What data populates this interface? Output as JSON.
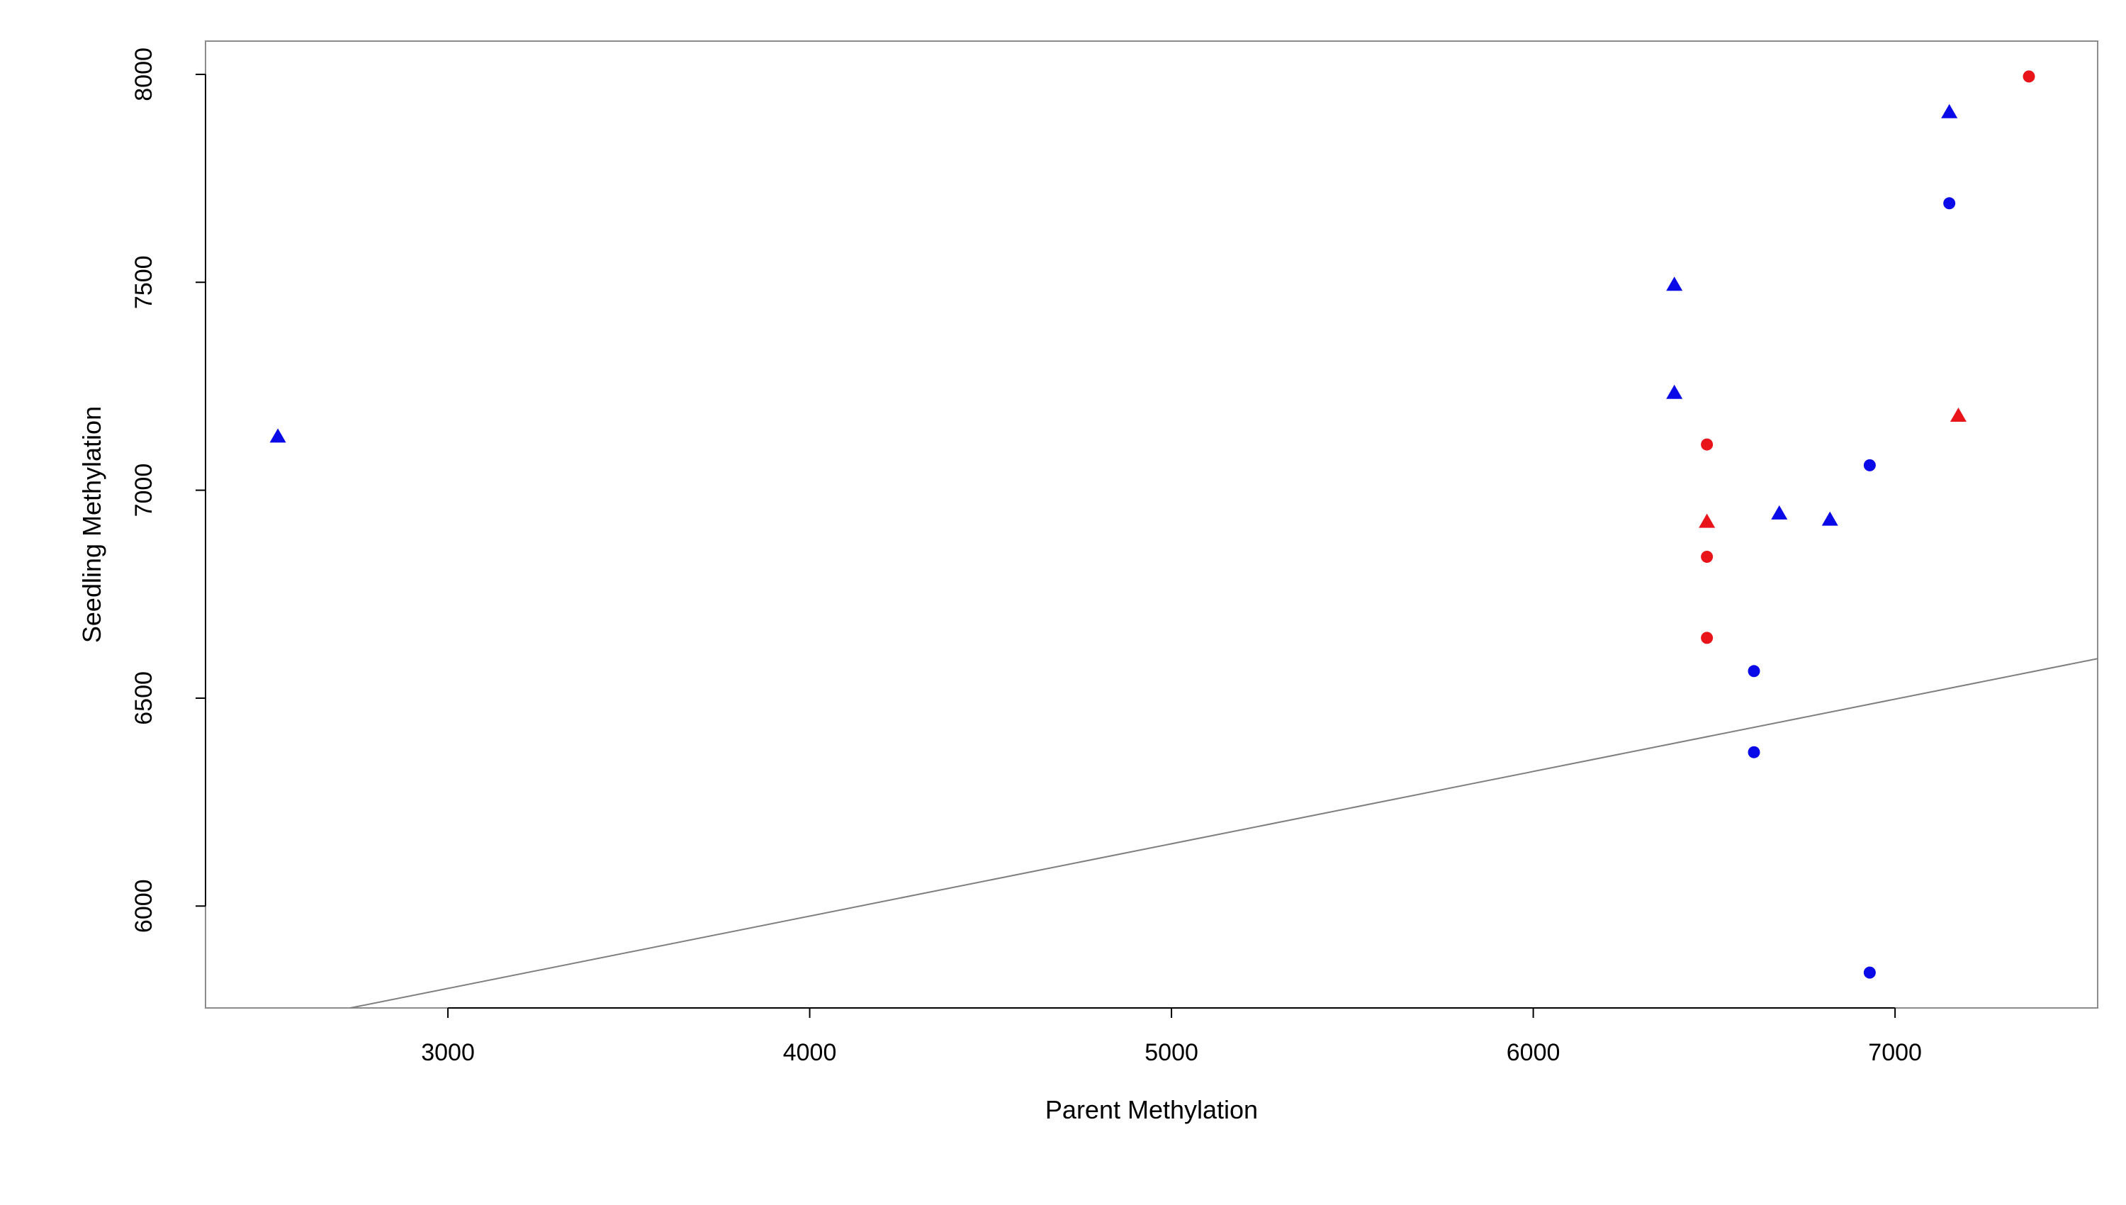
{
  "chart_data": {
    "type": "scatter",
    "title": "",
    "xlabel": "Parent Methylation",
    "ylabel": "Seedling Methylation",
    "xlim": [
      2330,
      7560
    ],
    "ylim": [
      5755,
      8080
    ],
    "x_ticks": [
      3000,
      4000,
      5000,
      6000,
      7000
    ],
    "y_ticks": [
      6000,
      6500,
      7000,
      7500,
      8000
    ],
    "grid": false,
    "legend": "none",
    "colors": {
      "red": "#e8141a",
      "blue": "#0a0ae8",
      "line": "#7f7f7f",
      "frame": "#8c8c8c"
    },
    "series": [
      {
        "color": "blue",
        "marker": "triangle",
        "points": [
          {
            "x": 2530,
            "y": 7130
          },
          {
            "x": 6390,
            "y": 7495
          },
          {
            "x": 6390,
            "y": 7235
          },
          {
            "x": 6680,
            "y": 6945
          },
          {
            "x": 6820,
            "y": 6930
          },
          {
            "x": 7150,
            "y": 7910
          }
        ]
      },
      {
        "color": "blue",
        "marker": "circle",
        "points": [
          {
            "x": 6610,
            "y": 6565
          },
          {
            "x": 6610,
            "y": 6370
          },
          {
            "x": 6930,
            "y": 7060
          },
          {
            "x": 6930,
            "y": 5840
          },
          {
            "x": 7150,
            "y": 7690
          }
        ]
      },
      {
        "color": "red",
        "marker": "triangle",
        "points": [
          {
            "x": 6480,
            "y": 6925
          },
          {
            "x": 7175,
            "y": 7180
          }
        ]
      },
      {
        "color": "red",
        "marker": "circle",
        "points": [
          {
            "x": 6480,
            "y": 7110
          },
          {
            "x": 6480,
            "y": 6840
          },
          {
            "x": 6480,
            "y": 6645
          },
          {
            "x": 7370,
            "y": 7995
          }
        ]
      }
    ],
    "trend_line": {
      "points": [
        {
          "x": 2730,
          "y": 5755
        },
        {
          "x": 7560,
          "y": 6595
        }
      ]
    }
  }
}
